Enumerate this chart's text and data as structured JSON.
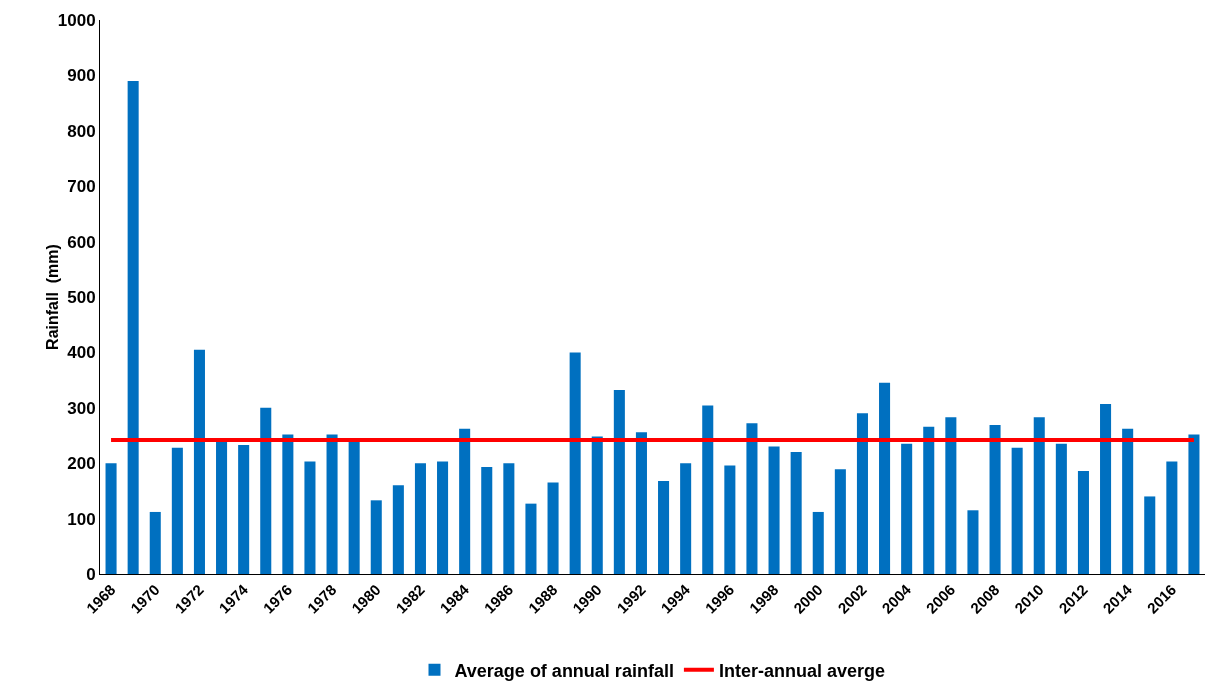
{
  "chart_data": {
    "type": "bar",
    "ylabel": "Rainfall  (mm)",
    "categories": [
      "1968",
      null,
      "1970",
      null,
      "1972",
      null,
      "1974",
      null,
      "1976",
      null,
      "1978",
      null,
      "1980",
      null,
      "1982",
      null,
      "1984",
      null,
      "1986",
      null,
      "1988",
      null,
      "1990",
      null,
      "1992",
      null,
      "1994",
      null,
      "1996",
      null,
      "1998",
      null,
      "2000",
      null,
      "2002",
      null,
      "2004",
      null,
      "2006",
      null,
      "2008",
      null,
      "2010",
      null,
      "2012",
      null,
      "2014",
      null,
      "2016",
      null
    ],
    "series": [
      {
        "name": "Average of annual rainfall",
        "color": "#0070c0",
        "values": [
          200,
          890,
          112,
          228,
          405,
          243,
          233,
          300,
          252,
          203,
          252,
          243,
          133,
          160,
          200,
          203,
          262,
          193,
          200,
          127,
          165,
          400,
          248,
          332,
          256,
          168,
          200,
          304,
          196,
          272,
          230,
          220,
          112,
          189,
          290,
          345,
          235,
          266,
          283,
          115,
          269,
          228,
          283,
          235,
          186,
          307,
          262,
          140,
          203,
          252
        ]
      },
      {
        "name": "Inter-annual averge",
        "type": "line",
        "color": "#ff0000",
        "values": [
          242,
          242,
          242,
          242,
          242,
          242,
          242,
          242,
          242,
          242,
          242,
          242,
          242,
          242,
          242,
          242,
          242,
          242,
          242,
          242,
          242,
          242,
          242,
          242,
          242,
          242,
          242,
          242,
          242,
          242,
          242,
          242,
          242,
          242,
          242,
          242,
          242,
          242,
          242,
          242,
          242,
          242,
          242,
          242,
          242,
          242,
          242,
          242,
          242,
          242
        ]
      }
    ],
    "ylim": [
      0,
      1000
    ],
    "yticks": [
      0,
      100,
      200,
      300,
      400,
      500,
      600,
      700,
      800,
      900,
      1000
    ],
    "grid": false,
    "legend": "bottom",
    "marker": "none"
  }
}
